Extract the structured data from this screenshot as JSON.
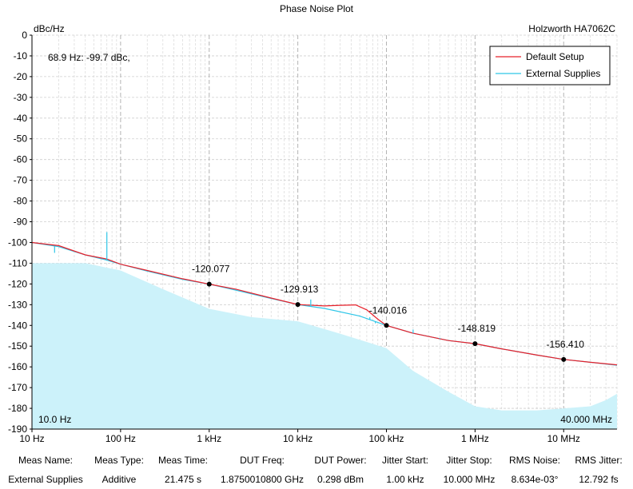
{
  "chart_data": {
    "type": "line",
    "title": "Phase Noise Plot",
    "instrument": "Holzworth HA7062C",
    "ylabel": "dBc/Hz",
    "x_scale": "log",
    "xlim_hz": [
      10,
      40000000
    ],
    "ylim": [
      -190,
      0
    ],
    "grid": true,
    "legend_position": "top-right",
    "x_ticks": [
      {
        "hz": 10,
        "label": "10 Hz"
      },
      {
        "hz": 100,
        "label": "100 Hz"
      },
      {
        "hz": 1000,
        "label": "1 kHz"
      },
      {
        "hz": 10000,
        "label": "10 kHz"
      },
      {
        "hz": 100000,
        "label": "100 kHz"
      },
      {
        "hz": 1000000,
        "label": "1 MHz"
      },
      {
        "hz": 10000000,
        "label": "10 MHz"
      }
    ],
    "y_ticks": [
      0,
      -10,
      -20,
      -30,
      -40,
      -50,
      -60,
      -70,
      -80,
      -90,
      -100,
      -110,
      -120,
      -130,
      -140,
      -150,
      -160,
      -170,
      -180,
      -190
    ],
    "cursor_readout": "68.9 Hz: -99.7 dBc,",
    "start_label": "10.0 Hz",
    "stop_label": "40.000 MHz",
    "series": [
      {
        "name": "Default Setup",
        "color": "#e8202a",
        "points": [
          [
            10,
            -100.0
          ],
          [
            20,
            -101.5
          ],
          [
            40,
            -106
          ],
          [
            70,
            -108
          ],
          [
            100,
            -110.5
          ],
          [
            200,
            -113.5
          ],
          [
            500,
            -117.5
          ],
          [
            1000,
            -120.1
          ],
          [
            2000,
            -122.5
          ],
          [
            5000,
            -126.8
          ],
          [
            10000,
            -129.9
          ],
          [
            20000,
            -130.6
          ],
          [
            30000,
            -130.3
          ],
          [
            45000,
            -130.1
          ],
          [
            60000,
            -132.5
          ],
          [
            80000,
            -137
          ],
          [
            100000,
            -140.0
          ],
          [
            200000,
            -143.8
          ],
          [
            500000,
            -147.3
          ],
          [
            1000000,
            -148.8
          ],
          [
            2000000,
            -151.3
          ],
          [
            5000000,
            -154.3
          ],
          [
            10000000,
            -156.4
          ],
          [
            20000000,
            -157.8
          ],
          [
            40000000,
            -159.0
          ]
        ]
      },
      {
        "name": "External Supplies",
        "color": "#2ec6e8",
        "points": [
          [
            10,
            -100.0
          ],
          [
            20,
            -102
          ],
          [
            40,
            -106
          ],
          [
            70,
            -108.5
          ],
          [
            100,
            -110.5
          ],
          [
            200,
            -113.8
          ],
          [
            500,
            -117.8
          ],
          [
            1000,
            -120.1
          ],
          [
            2000,
            -123
          ],
          [
            5000,
            -127
          ],
          [
            10000,
            -129.9
          ],
          [
            20000,
            -131.8
          ],
          [
            50000,
            -135.5
          ],
          [
            100000,
            -140.0
          ],
          [
            200000,
            -143.8
          ],
          [
            500000,
            -147.3
          ],
          [
            1000000,
            -148.8
          ],
          [
            2000000,
            -151.3
          ],
          [
            5000000,
            -154.3
          ],
          [
            10000000,
            -156.4
          ],
          [
            20000000,
            -157.8
          ],
          [
            40000000,
            -159.2
          ]
        ]
      }
    ],
    "spurs": [
      {
        "hz": 18,
        "value": -105
      },
      {
        "hz": 70,
        "value": -95
      },
      {
        "hz": 14000,
        "value": -127.5
      },
      {
        "hz": 65000,
        "value": -136
      },
      {
        "hz": 75000,
        "value": -139
      },
      {
        "hz": 200000,
        "value": -142
      },
      {
        "hz": 400000,
        "value": -146
      }
    ],
    "noise_floor": {
      "color": "#ccf2fa",
      "points": [
        [
          10,
          -110
        ],
        [
          40,
          -110
        ],
        [
          100,
          -113.5
        ],
        [
          300,
          -122.5
        ],
        [
          1000,
          -132
        ],
        [
          3000,
          -136
        ],
        [
          10000,
          -138
        ],
        [
          30000,
          -144
        ],
        [
          60000,
          -148
        ],
        [
          100000,
          -151
        ],
        [
          200000,
          -162
        ],
        [
          500000,
          -172
        ],
        [
          1000000,
          -179
        ],
        [
          2000000,
          -181
        ],
        [
          5000000,
          -181
        ],
        [
          10000000,
          -180
        ],
        [
          20000000,
          -179
        ],
        [
          30000000,
          -176
        ],
        [
          40000000,
          -173
        ]
      ]
    },
    "markers": [
      {
        "hz": 1000,
        "value": -120.077,
        "label": "-120.077"
      },
      {
        "hz": 10000,
        "value": -129.913,
        "label": "-129.913"
      },
      {
        "hz": 100000,
        "value": -140.016,
        "label": "-140.016"
      },
      {
        "hz": 1000000,
        "value": -148.819,
        "label": "-148.819"
      },
      {
        "hz": 10000000,
        "value": -156.41,
        "label": "-156.410"
      }
    ]
  },
  "meas_table": {
    "columns": [
      {
        "header": "Meas Name:",
        "value": "External Supplies"
      },
      {
        "header": "Meas Type:",
        "value": "Additive"
      },
      {
        "header": "Meas Time:",
        "value": "21.475 s"
      },
      {
        "header": "DUT Freq:",
        "value": "1.8750010800 GHz"
      },
      {
        "header": "DUT Power:",
        "value": "0.298 dBm"
      },
      {
        "header": "Jitter Start:",
        "value": "1.00 kHz"
      },
      {
        "header": "Jitter Stop:",
        "value": "10.000 MHz"
      },
      {
        "header": "RMS Noise:",
        "value": "8.634e-03°"
      },
      {
        "header": "RMS Jitter:",
        "value": "12.792 fs"
      }
    ]
  }
}
